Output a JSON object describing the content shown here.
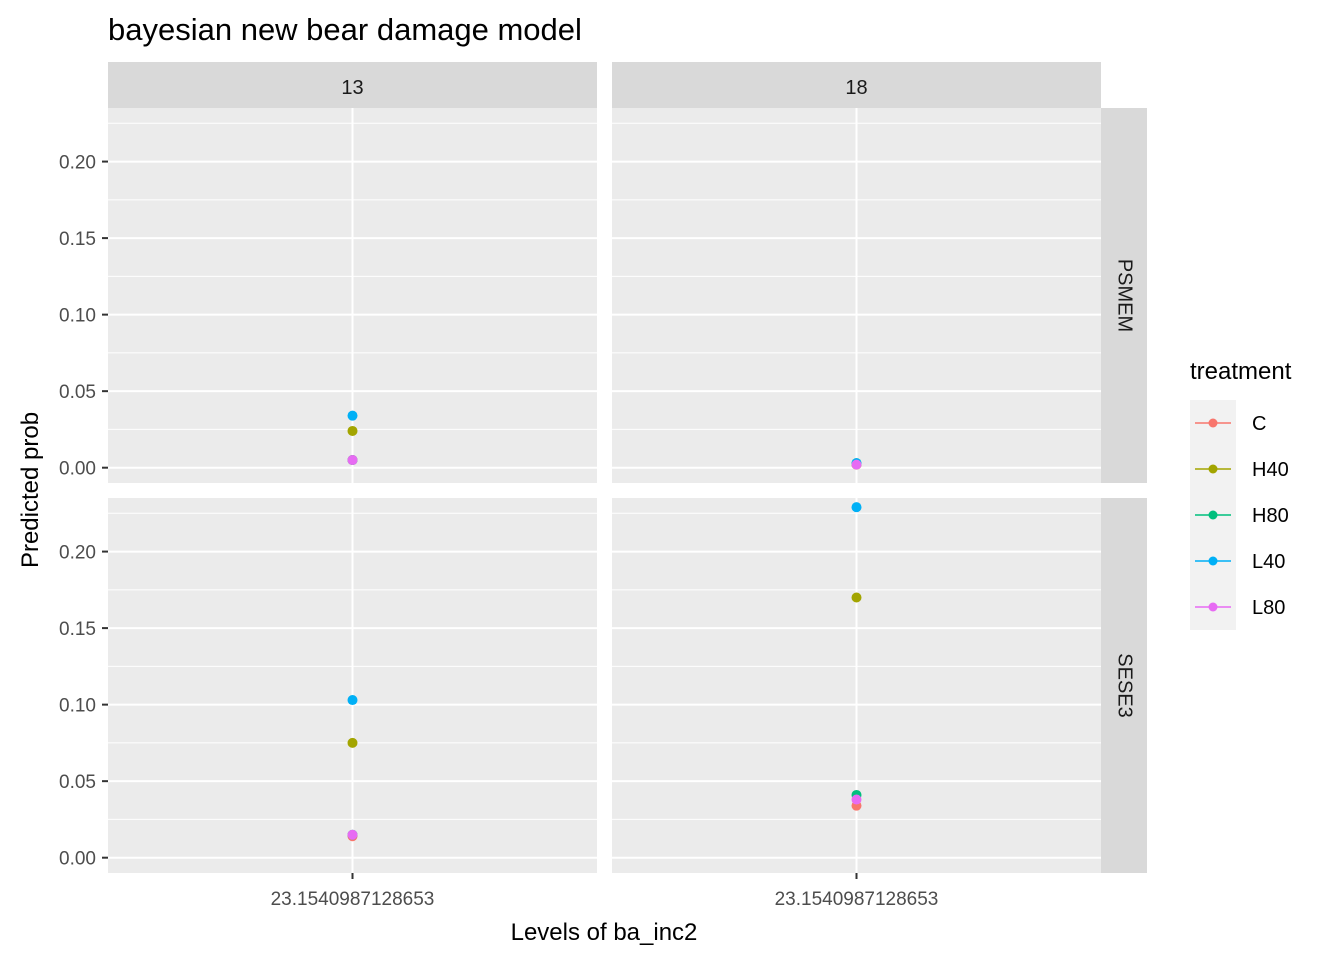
{
  "chart_data": {
    "type": "scatter",
    "title": "bayesian new bear damage model",
    "xlabel": "Levels of ba_inc2",
    "ylabel": "Predicted prob",
    "x_tick_label": "23.1540987128653",
    "ylim": [
      -0.01,
      0.235
    ],
    "y_ticks": [
      0.0,
      0.05,
      0.1,
      0.15,
      0.2
    ],
    "y_tick_labels": [
      "0.00",
      "0.05",
      "0.10",
      "0.15",
      "0.20"
    ],
    "grid": true,
    "legend": {
      "title": "treatment",
      "placement": "right",
      "entries": [
        {
          "name": "C",
          "color": "#F8766D"
        },
        {
          "name": "H40",
          "color": "#A3A500"
        },
        {
          "name": "H80",
          "color": "#00BF7D"
        },
        {
          "name": "L40",
          "color": "#00B0F6"
        },
        {
          "name": "L80",
          "color": "#E76BF3"
        }
      ]
    },
    "facet_columns": [
      "13",
      "18"
    ],
    "facet_rows": [
      "PSMEM",
      "SESE3"
    ],
    "panels": [
      {
        "column": "13",
        "row": "PSMEM",
        "points": {
          "C": 0.005,
          "H40": 0.024,
          "H80": 0.005,
          "L40": 0.034,
          "L80": 0.005
        }
      },
      {
        "column": "18",
        "row": "PSMEM",
        "points": {
          "C": 0.002,
          "H40": 0.002,
          "H80": 0.003,
          "L40": 0.003,
          "L80": 0.002
        }
      },
      {
        "column": "13",
        "row": "SESE3",
        "points": {
          "C": 0.014,
          "H40": 0.075,
          "H80": 0.015,
          "L40": 0.103,
          "L80": 0.015
        }
      },
      {
        "column": "18",
        "row": "SESE3",
        "points": {
          "C": 0.034,
          "H40": 0.17,
          "H80": 0.041,
          "L40": 0.229,
          "L80": 0.038
        }
      }
    ]
  }
}
